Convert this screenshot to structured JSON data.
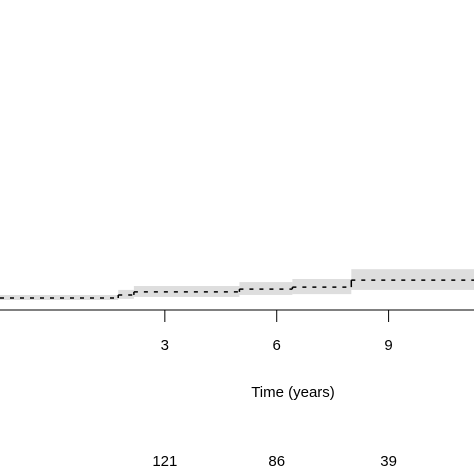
{
  "chart_data": {
    "type": "step",
    "x_label": "Time (years)",
    "xlim": [
      -1.42,
      11.29
    ],
    "xticks": [
      3,
      6,
      9
    ],
    "ylim": [
      0,
      1
    ],
    "series": [
      {
        "color": "#000000",
        "band_color": "#dedede",
        "x": [
          -1.42,
          1.75,
          2.17,
          5.0,
          6.42,
          8.0
        ],
        "values": [
          0.007,
          0.018,
          0.029,
          0.039,
          0.046,
          0.071
        ],
        "lower": [
          0.0,
          0.004,
          0.011,
          0.018,
          0.021,
          0.036
        ],
        "upper": [
          0.018,
          0.036,
          0.05,
          0.064,
          0.075,
          0.11
        ]
      }
    ],
    "at_risk": {
      "x": [
        3,
        6,
        9
      ],
      "values": [
        121,
        86,
        39
      ]
    }
  }
}
